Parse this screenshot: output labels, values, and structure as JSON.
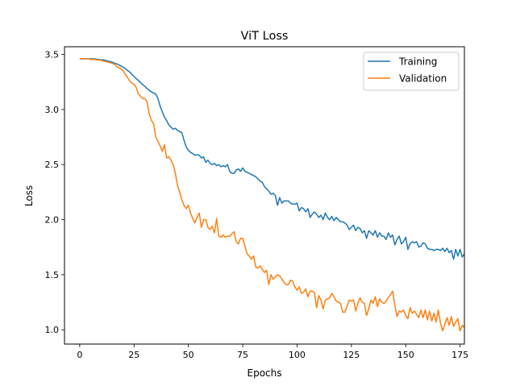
{
  "chart_data": {
    "type": "line",
    "title": "ViT Loss",
    "xlabel": "Epochs",
    "ylabel": "Loss",
    "xlim": [
      -7,
      177
    ],
    "ylim": [
      0.87,
      3.57
    ],
    "xticks": [
      0,
      25,
      50,
      75,
      100,
      125,
      150,
      175
    ],
    "yticks": [
      1.0,
      1.5,
      2.0,
      2.5,
      3.0,
      3.5
    ],
    "grid": false,
    "legend_position": "top-right",
    "series": [
      {
        "name": "Training",
        "color": "#1f77b4",
        "values": [
          3.46,
          3.46,
          3.46,
          3.46,
          3.46,
          3.46,
          3.46,
          3.46,
          3.455,
          3.455,
          3.45,
          3.45,
          3.445,
          3.44,
          3.435,
          3.43,
          3.42,
          3.415,
          3.405,
          3.395,
          3.385,
          3.37,
          3.355,
          3.34,
          3.32,
          3.3,
          3.28,
          3.265,
          3.245,
          3.225,
          3.21,
          3.19,
          3.175,
          3.16,
          3.15,
          3.14,
          3.1,
          3.03,
          2.98,
          2.93,
          2.9,
          2.86,
          2.84,
          2.82,
          2.83,
          2.81,
          2.8,
          2.79,
          2.72,
          2.66,
          2.63,
          2.61,
          2.6,
          2.585,
          2.59,
          2.585,
          2.56,
          2.57,
          2.52,
          2.54,
          2.51,
          2.5,
          2.51,
          2.49,
          2.5,
          2.48,
          2.49,
          2.48,
          2.5,
          2.44,
          2.42,
          2.42,
          2.45,
          2.46,
          2.44,
          2.47,
          2.44,
          2.43,
          2.42,
          2.41,
          2.4,
          2.39,
          2.37,
          2.35,
          2.34,
          2.3,
          2.28,
          2.26,
          2.23,
          2.24,
          2.22,
          2.13,
          2.2,
          2.15,
          2.17,
          2.17,
          2.17,
          2.15,
          2.14,
          2.14,
          2.15,
          2.08,
          2.11,
          2.1,
          2.07,
          2.1,
          2.02,
          2.05,
          2.07,
          2.05,
          2.02,
          2.04,
          2.0,
          2.06,
          2.02,
          2.0,
          2.03,
          1.99,
          2.02,
          2.0,
          1.98,
          1.98,
          1.97,
          1.95,
          1.91,
          1.93,
          1.95,
          1.9,
          1.93,
          1.92,
          1.88,
          1.9,
          1.83,
          1.9,
          1.88,
          1.86,
          1.9,
          1.84,
          1.88,
          1.85,
          1.85,
          1.82,
          1.88,
          1.84,
          1.86,
          1.77,
          1.82,
          1.85,
          1.78,
          1.8,
          1.84,
          1.73,
          1.78,
          1.8,
          1.79,
          1.8,
          1.75,
          1.76,
          1.79,
          1.78,
          1.74,
          1.73,
          1.73,
          1.72,
          1.73,
          1.73,
          1.72,
          1.74,
          1.71,
          1.74,
          1.7,
          1.72,
          1.64,
          1.73,
          1.67,
          1.73,
          1.66,
          1.69,
          1.68
        ]
      },
      {
        "name": "Validation",
        "color": "#ff7f0e",
        "values": [
          3.46,
          3.46,
          3.46,
          3.46,
          3.46,
          3.455,
          3.455,
          3.455,
          3.45,
          3.45,
          3.445,
          3.44,
          3.435,
          3.43,
          3.425,
          3.42,
          3.41,
          3.39,
          3.38,
          3.37,
          3.35,
          3.32,
          3.29,
          3.26,
          3.24,
          3.23,
          3.2,
          3.14,
          3.12,
          3.1,
          3.1,
          3.07,
          2.96,
          2.9,
          2.87,
          2.75,
          2.71,
          2.67,
          2.62,
          2.68,
          2.56,
          2.57,
          2.54,
          2.5,
          2.42,
          2.31,
          2.25,
          2.18,
          2.13,
          2.1,
          2.13,
          2.06,
          2.01,
          1.97,
          2.02,
          2.06,
          1.93,
          2.0,
          2.0,
          1.93,
          1.91,
          1.94,
          1.88,
          2.01,
          1.85,
          1.84,
          1.86,
          1.84,
          1.85,
          1.85,
          1.87,
          1.89,
          1.8,
          1.78,
          1.83,
          1.83,
          1.76,
          1.69,
          1.67,
          1.64,
          1.67,
          1.57,
          1.56,
          1.58,
          1.55,
          1.52,
          1.54,
          1.41,
          1.5,
          1.46,
          1.48,
          1.5,
          1.49,
          1.46,
          1.43,
          1.41,
          1.41,
          1.45,
          1.44,
          1.39,
          1.36,
          1.39,
          1.33,
          1.34,
          1.37,
          1.3,
          1.35,
          1.35,
          1.34,
          1.2,
          1.31,
          1.27,
          1.19,
          1.27,
          1.28,
          1.29,
          1.33,
          1.3,
          1.26,
          1.25,
          1.24,
          1.16,
          1.16,
          1.21,
          1.27,
          1.26,
          1.27,
          1.17,
          1.24,
          1.29,
          1.25,
          1.24,
          1.13,
          1.19,
          1.27,
          1.24,
          1.3,
          1.21,
          1.28,
          1.25,
          1.24,
          1.26,
          1.29,
          1.32,
          1.35,
          1.22,
          1.12,
          1.17,
          1.16,
          1.18,
          1.13,
          1.1,
          1.2,
          1.15,
          1.17,
          1.14,
          1.11,
          1.18,
          1.11,
          1.18,
          1.09,
          1.17,
          1.08,
          1.15,
          1.07,
          1.18,
          1.06,
          0.99,
          1.05,
          1.11,
          1.04,
          1.12,
          1.03,
          1.07,
          1.1,
          0.99,
          1.04,
          1.02,
          1.06,
          1.01,
          1.05,
          1.1
        ]
      }
    ]
  }
}
